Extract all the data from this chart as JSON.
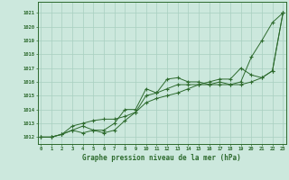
{
  "x": [
    0,
    1,
    2,
    3,
    4,
    5,
    6,
    7,
    8,
    9,
    10,
    11,
    12,
    13,
    14,
    15,
    16,
    17,
    18,
    19,
    20,
    21,
    22,
    23
  ],
  "series1": [
    1012,
    1012,
    1012.2,
    1012.5,
    1012.8,
    1012.5,
    1012.5,
    1013.0,
    1014.0,
    1014.0,
    1015.5,
    1015.2,
    1016.2,
    1016.3,
    1016.0,
    1016.0,
    1015.8,
    1016.0,
    1015.8,
    1016.0,
    1017.8,
    1019.0,
    1020.3,
    1021.0
  ],
  "series2": [
    1012,
    1012,
    1012.2,
    1012.8,
    1013.0,
    1013.2,
    1013.3,
    1013.3,
    1013.5,
    1013.8,
    1015.0,
    1015.2,
    1015.5,
    1015.8,
    1015.8,
    1015.8,
    1016.0,
    1016.2,
    1016.2,
    1017.0,
    1016.5,
    1016.3,
    1016.8,
    1021.0
  ],
  "series3": [
    1012,
    1012,
    1012.2,
    1012.5,
    1012.3,
    1012.5,
    1012.3,
    1012.5,
    1013.2,
    1013.8,
    1014.5,
    1014.8,
    1015.0,
    1015.2,
    1015.5,
    1015.8,
    1015.8,
    1015.8,
    1015.8,
    1015.8,
    1016.0,
    1016.3,
    1016.8,
    1021.0
  ],
  "line_color": "#2d6a2d",
  "bg_color": "#cce8dd",
  "grid_color": "#a8cfc0",
  "ylabel_values": [
    1012,
    1013,
    1014,
    1015,
    1016,
    1017,
    1018,
    1019,
    1020,
    1021
  ],
  "xlabel_values": [
    0,
    1,
    2,
    3,
    4,
    5,
    6,
    7,
    8,
    9,
    10,
    11,
    12,
    13,
    14,
    15,
    16,
    17,
    18,
    19,
    20,
    21,
    22,
    23
  ],
  "xlabel": "Graphe pression niveau de la mer (hPa)",
  "ylim": [
    1011.5,
    1021.8
  ],
  "xlim": [
    -0.3,
    23.3
  ]
}
